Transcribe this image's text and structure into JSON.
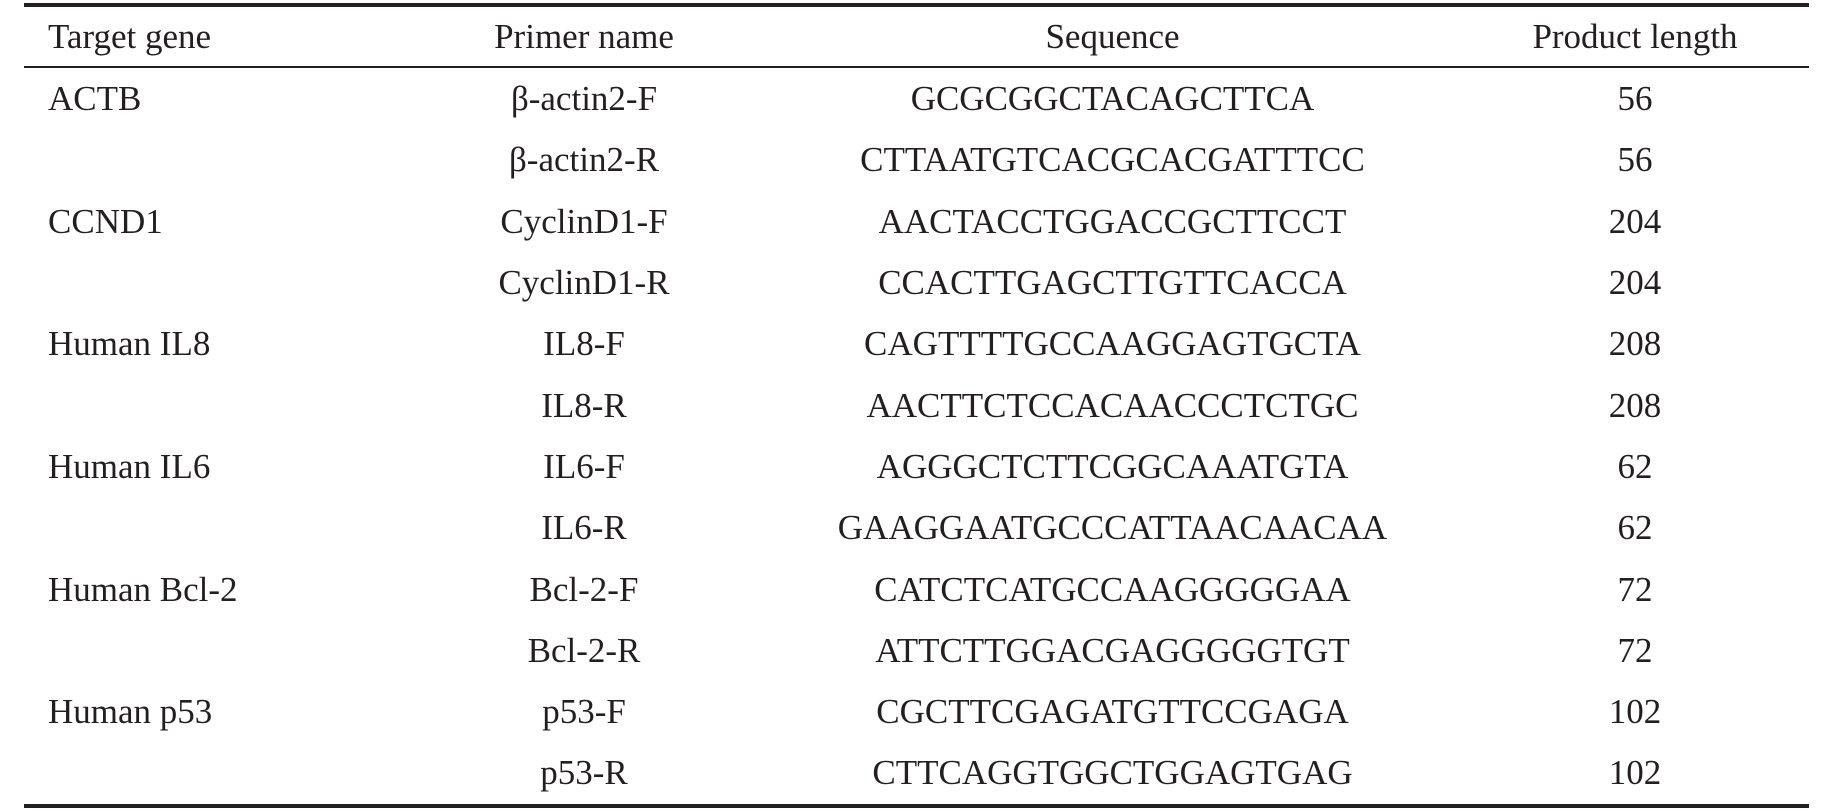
{
  "table": {
    "headers": {
      "gene": "Target gene",
      "primer": "Primer name",
      "sequence": "Sequence",
      "length": "Product length"
    },
    "rows": [
      {
        "gene": "ACTB",
        "primer": "β-actin2-F",
        "sequence": "GCGCGGCTACAGCTTCA",
        "length": "56"
      },
      {
        "gene": "",
        "primer": "β-actin2-R",
        "sequence": "CTTAATGTCACGCACGATTTCC",
        "length": "56"
      },
      {
        "gene": "CCND1",
        "primer": "CyclinD1-F",
        "sequence": "AACTACCTGGACCGCTTCCT",
        "length": "204"
      },
      {
        "gene": "",
        "primer": "CyclinD1-R",
        "sequence": "CCACTTGAGCTTGTTCACCA",
        "length": "204"
      },
      {
        "gene": "Human IL8",
        "primer": "IL8-F",
        "sequence": "CAGTTTTGCCAAGGAGTGCTA",
        "length": "208"
      },
      {
        "gene": "",
        "primer": "IL8-R",
        "sequence": "AACTTCTCCACAACCCTCTGC",
        "length": "208"
      },
      {
        "gene": "Human IL6",
        "primer": "IL6-F",
        "sequence": "AGGGCTCTTCGGCAAATGTA",
        "length": "62"
      },
      {
        "gene": "",
        "primer": "IL6-R",
        "sequence": "GAAGGAATGCCCATTAACAACAA",
        "length": "62"
      },
      {
        "gene": "Human Bcl-2",
        "primer": "Bcl-2-F",
        "sequence": "CATCTCATGCCAAGGGGGAA",
        "length": "72"
      },
      {
        "gene": "",
        "primer": "Bcl-2-R",
        "sequence": "ATTCTTGGACGAGGGGGTGT",
        "length": "72"
      },
      {
        "gene": "Human p53",
        "primer": "p53-F",
        "sequence": "CGCTTCGAGATGTTCCGAGA",
        "length": "102"
      },
      {
        "gene": "",
        "primer": "p53-R",
        "sequence": "CTTCAGGTGGCTGGAGTGAG",
        "length": "102"
      }
    ]
  }
}
